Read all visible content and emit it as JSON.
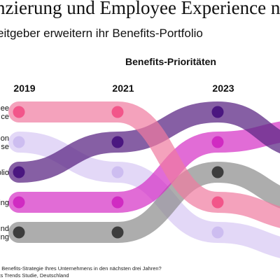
{
  "header": {
    "title": "nzierung und Employee Experience n",
    "subtitle": "eitgeber erweitern ihr Benefits-Portfolio"
  },
  "footnote": {
    "question": "e Benefits-Strategie Ihres Unternehmens in den nächsten drei Jahren?",
    "source": "rts Trends Studie, Deutschland"
  },
  "chart_data": {
    "type": "bump",
    "title": "Benefits-Prioritäten",
    "x": [
      "2019",
      "2021",
      "2023"
    ],
    "rank_axis": "rank 1 = top",
    "series": [
      {
        "label_lines": [
          "ee",
          "ce"
        ],
        "color": "#f07aa0",
        "ranks": [
          1,
          1,
          4
        ]
      },
      {
        "label_lines": [
          "on",
          "se"
        ],
        "color": "#d7c8f4",
        "ranks": [
          2,
          3,
          5
        ]
      },
      {
        "label_lines": [
          "olio"
        ],
        "color": "#5e2a86",
        "ranks": [
          3,
          2,
          1
        ]
      },
      {
        "label_lines": [
          "ing"
        ],
        "color": "#d42ec4",
        "ranks": [
          4,
          4,
          2
        ]
      },
      {
        "label_lines": [
          "nd",
          "ing"
        ],
        "color": "#8a8a8a",
        "ranks": [
          5,
          5,
          3
        ]
      }
    ]
  }
}
